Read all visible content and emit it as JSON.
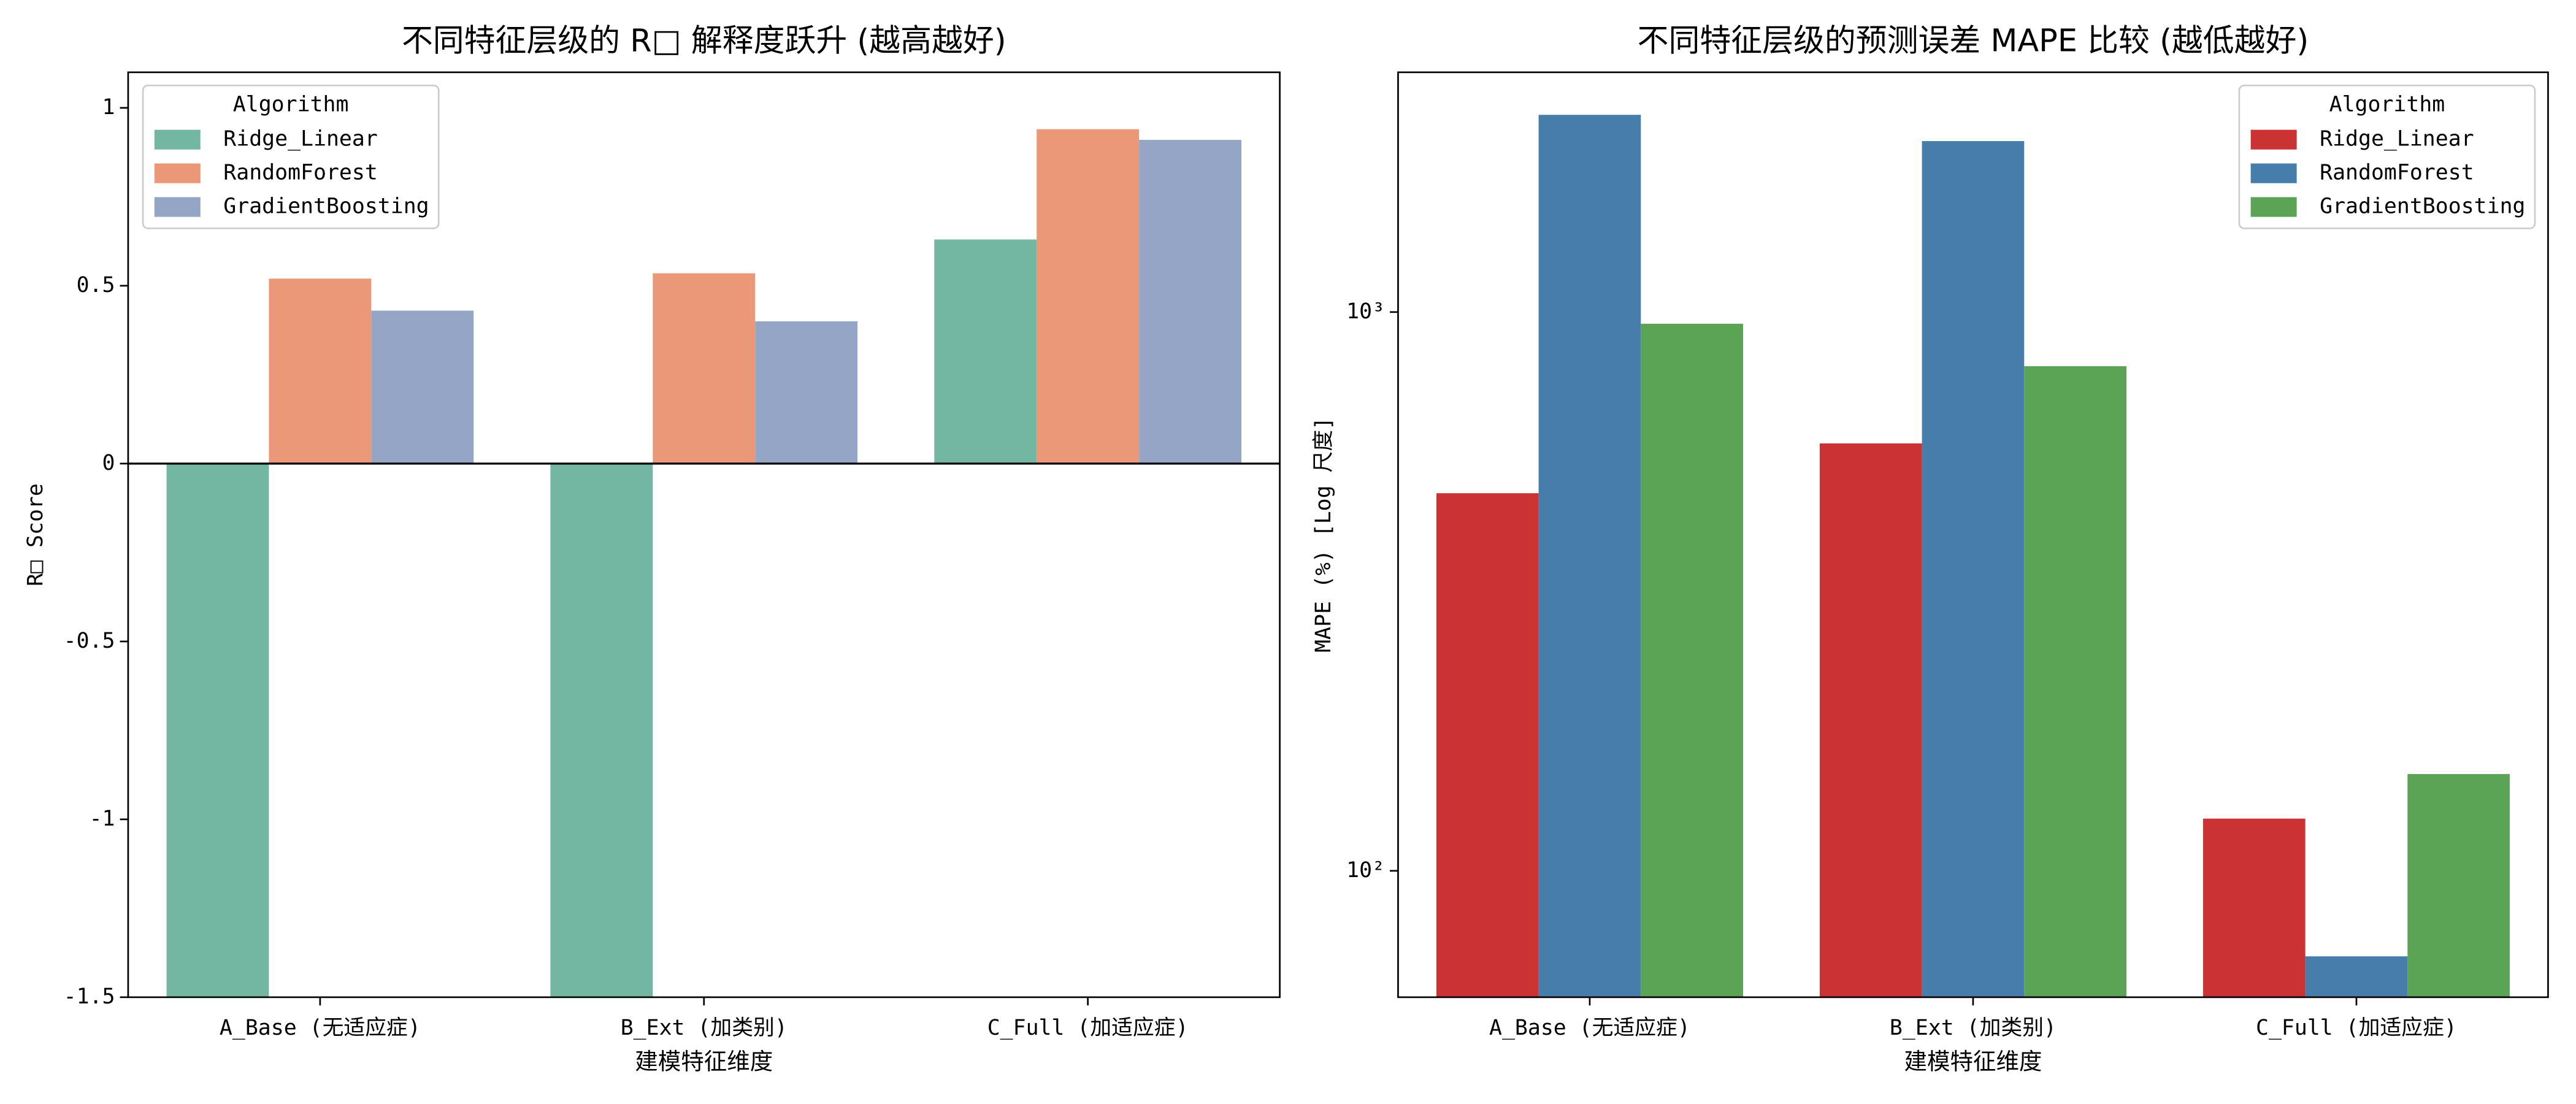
{
  "chart_data": [
    {
      "type": "bar",
      "title": "不同特征层级的 R□ 解释度跃升 (越高越好)",
      "x_label": "建模特征维度",
      "y_label": "R□ Score",
      "categories": [
        "A_Base (无适应症)",
        "B_Ext (加类别)",
        "C_Full (加适应症)"
      ],
      "series": [
        {
          "name": "Ridge_Linear",
          "color": "#73b7a3",
          "values": [
            -1.6,
            -1.6,
            0.63
          ]
        },
        {
          "name": "RandomForest",
          "color": "#ea9877",
          "values": [
            0.52,
            0.535,
            0.94
          ]
        },
        {
          "name": "GradientBoosting",
          "color": "#95a5c6",
          "values": [
            0.43,
            0.4,
            0.91
          ]
        }
      ],
      "ylim": [
        -1.5,
        1.1
      ],
      "yticks": [
        -1.5,
        -1.0,
        -0.5,
        0.0,
        0.5,
        1.0
      ],
      "legend_title": "Algorithm",
      "legend": "upper left"
    },
    {
      "type": "bar",
      "title": "不同特征层级的预测误差 MAPE 比较 (越低越好)",
      "x_label": "建模特征维度",
      "y_label": "MAPE (%) [Log 尺度]",
      "categories": [
        "A_Base (无适应症)",
        "B_Ext (加类别)",
        "C_Full (加适应症)"
      ],
      "series": [
        {
          "name": "Ridge_Linear",
          "color": "#cb3234",
          "values": [
            474,
            582,
            124
          ]
        },
        {
          "name": "RandomForest",
          "color": "#477dab",
          "values": [
            2254,
            2023,
            70.3
          ]
        },
        {
          "name": "GradientBoosting",
          "color": "#5ba355",
          "values": [
            953,
            800,
            149
          ]
        }
      ],
      "ylim": [
        59.4,
        2686
      ],
      "yscale": "log",
      "yticks": [
        {
          "value": 100,
          "label": "10²"
        },
        {
          "value": 1000,
          "label": "10³"
        }
      ],
      "legend_title": "Algorithm",
      "legend": "upper right"
    }
  ]
}
